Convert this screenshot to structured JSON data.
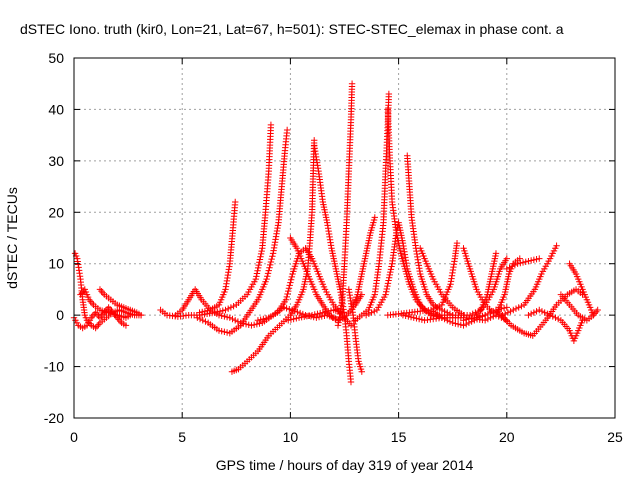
{
  "chart_data": {
    "type": "scatter",
    "title": "dSTEC Iono. truth (kir0, Lon=21, Lat=67, h=501): STEC-STEC_elemax in phase cont. a",
    "xlabel": "GPS time / hours of day 319 of year 2014",
    "ylabel": "dSTEC  / TECUs",
    "xlim": [
      0,
      25
    ],
    "ylim": [
      -20,
      50
    ],
    "xticks": [
      "0",
      "5",
      "10",
      "15",
      "20",
      "25"
    ],
    "yticks": [
      "-20",
      "-10",
      "0",
      "10",
      "20",
      "30",
      "40",
      "50"
    ],
    "grid": true,
    "marker": "plus",
    "marker_color": "#ff0000",
    "series_arcs": [
      {
        "values": [
          [
            0.05,
            12
          ],
          [
            0.15,
            11
          ],
          [
            0.3,
            7
          ],
          [
            0.4,
            3
          ],
          [
            0.5,
            0
          ],
          [
            0.6,
            -1
          ],
          [
            0.8,
            -2
          ],
          [
            1.0,
            -2.5
          ],
          [
            1.2,
            -1.5
          ],
          [
            1.5,
            -0.5
          ],
          [
            1.8,
            0.5
          ],
          [
            2.1,
            1
          ],
          [
            2.4,
            0.5
          ],
          [
            2.8,
            0
          ],
          [
            3.1,
            0
          ]
        ]
      },
      {
        "values": [
          [
            0.0,
            -0.5
          ],
          [
            0.2,
            -2
          ],
          [
            0.4,
            -2.5
          ],
          [
            0.6,
            -2
          ],
          [
            0.8,
            -0.5
          ],
          [
            1.0,
            0.5
          ],
          [
            1.2,
            -0.5
          ],
          [
            1.4,
            0.5
          ],
          [
            1.6,
            1.5
          ],
          [
            1.8,
            0.5
          ],
          [
            2.0,
            -0.5
          ],
          [
            2.2,
            -1.5
          ],
          [
            2.4,
            -2
          ]
        ]
      },
      {
        "values": [
          [
            0.3,
            4
          ],
          [
            0.5,
            5
          ],
          [
            0.7,
            3
          ],
          [
            0.9,
            2
          ],
          [
            1.2,
            1
          ],
          [
            1.6,
            0.5
          ],
          [
            2.0,
            0
          ],
          [
            2.4,
            -0.5
          ],
          [
            2.6,
            0
          ]
        ]
      },
      {
        "values": [
          [
            1.2,
            5
          ],
          [
            1.4,
            4
          ],
          [
            1.7,
            3
          ],
          [
            2.0,
            2
          ],
          [
            2.3,
            1.5
          ],
          [
            2.6,
            1
          ],
          [
            2.9,
            0.5
          ],
          [
            3.1,
            0
          ]
        ]
      },
      {
        "values": [
          [
            4.0,
            1
          ],
          [
            4.3,
            0
          ],
          [
            4.8,
            -0.3
          ],
          [
            5.3,
            0
          ],
          [
            5.8,
            0
          ],
          [
            6.5,
            0.5
          ],
          [
            7.0,
            1
          ],
          [
            7.5,
            2
          ],
          [
            8.0,
            4
          ],
          [
            8.4,
            7
          ],
          [
            8.7,
            13
          ],
          [
            8.85,
            20
          ],
          [
            9.0,
            28
          ],
          [
            9.1,
            37
          ]
        ]
      },
      {
        "values": [
          [
            4.7,
            0
          ],
          [
            5.0,
            1
          ],
          [
            5.3,
            3
          ],
          [
            5.6,
            5
          ],
          [
            5.9,
            3
          ],
          [
            6.3,
            1
          ],
          [
            6.7,
            0
          ],
          [
            7.2,
            -0.5
          ],
          [
            7.7,
            -1.5
          ],
          [
            8.2,
            -2
          ],
          [
            8.7,
            -1.5
          ],
          [
            9.2,
            0
          ],
          [
            9.7,
            1.5
          ],
          [
            10.2,
            0.8
          ],
          [
            10.7,
            0
          ],
          [
            11.2,
            -0.5
          ],
          [
            11.7,
            0
          ],
          [
            12.2,
            -1
          ]
        ]
      },
      {
        "values": [
          [
            5.7,
            -0.5
          ],
          [
            6.2,
            -1.5
          ],
          [
            6.7,
            -3
          ],
          [
            7.2,
            -3.5
          ],
          [
            7.7,
            -2
          ],
          [
            8.1,
            0.5
          ],
          [
            8.5,
            3
          ],
          [
            8.9,
            7
          ],
          [
            9.2,
            12
          ],
          [
            9.45,
            18
          ],
          [
            9.6,
            25
          ],
          [
            9.75,
            32
          ],
          [
            9.85,
            36
          ]
        ]
      },
      {
        "values": [
          [
            5.8,
            0.5
          ],
          [
            6.3,
            1
          ],
          [
            6.7,
            2
          ],
          [
            7.0,
            5
          ],
          [
            7.2,
            10
          ],
          [
            7.35,
            17
          ],
          [
            7.45,
            22
          ]
        ]
      },
      {
        "values": [
          [
            7.3,
            -11
          ],
          [
            7.6,
            -10.5
          ],
          [
            8.0,
            -9
          ],
          [
            8.5,
            -7
          ],
          [
            9.0,
            -4
          ],
          [
            9.5,
            -2
          ],
          [
            10.0,
            0
          ],
          [
            10.3,
            2
          ],
          [
            10.6,
            5
          ],
          [
            10.8,
            9
          ],
          [
            10.9,
            14
          ],
          [
            11.0,
            20
          ],
          [
            11.05,
            27
          ],
          [
            11.1,
            34
          ]
        ]
      },
      {
        "values": [
          [
            8.5,
            -1
          ],
          [
            9.0,
            -0.5
          ],
          [
            9.4,
            0.5
          ],
          [
            9.8,
            3
          ],
          [
            10.1,
            8
          ],
          [
            10.4,
            12
          ],
          [
            10.7,
            13
          ],
          [
            11.0,
            11
          ],
          [
            11.3,
            8
          ],
          [
            11.6,
            5
          ],
          [
            12.0,
            2
          ],
          [
            12.4,
            0
          ],
          [
            12.8,
            -2
          ]
        ]
      },
      {
        "values": [
          [
            11.1,
            33
          ],
          [
            11.3,
            28
          ],
          [
            11.5,
            22
          ],
          [
            11.7,
            18
          ],
          [
            11.9,
            13
          ],
          [
            12.1,
            9
          ],
          [
            12.3,
            5
          ],
          [
            12.5,
            0
          ],
          [
            12.6,
            -4
          ],
          [
            12.7,
            -9
          ],
          [
            12.8,
            -13
          ]
        ]
      },
      {
        "values": [
          [
            10.0,
            15
          ],
          [
            10.3,
            13
          ],
          [
            10.6,
            10
          ],
          [
            10.9,
            7
          ],
          [
            11.2,
            4
          ],
          [
            11.5,
            2
          ],
          [
            11.8,
            0
          ],
          [
            12.2,
            -1
          ],
          [
            12.6,
            0
          ],
          [
            13.0,
            2
          ],
          [
            13.3,
            4
          ]
        ]
      },
      {
        "values": [
          [
            12.2,
            -2
          ],
          [
            12.4,
            3
          ],
          [
            12.5,
            10
          ],
          [
            12.6,
            18
          ],
          [
            12.7,
            28
          ],
          [
            12.8,
            38
          ],
          [
            12.85,
            45
          ]
        ]
      },
      {
        "values": [
          [
            12.7,
            5
          ],
          [
            12.9,
            0
          ],
          [
            13.0,
            -4
          ],
          [
            13.15,
            -9
          ],
          [
            13.3,
            -11
          ]
        ]
      },
      {
        "values": [
          [
            12.9,
            2
          ],
          [
            13.1,
            4
          ],
          [
            13.3,
            8
          ],
          [
            13.5,
            12
          ],
          [
            13.7,
            16
          ],
          [
            13.9,
            19
          ]
        ]
      },
      {
        "values": [
          [
            13.0,
            -1
          ],
          [
            13.3,
            0
          ],
          [
            13.6,
            1
          ],
          [
            13.9,
            4
          ],
          [
            14.1,
            10
          ],
          [
            14.3,
            18
          ],
          [
            14.4,
            28
          ],
          [
            14.5,
            37
          ],
          [
            14.55,
            43
          ]
        ]
      },
      {
        "values": [
          [
            14.5,
            40
          ],
          [
            14.6,
            30
          ],
          [
            14.7,
            22
          ],
          [
            14.9,
            16
          ],
          [
            15.1,
            12
          ],
          [
            15.3,
            9
          ],
          [
            15.5,
            6
          ],
          [
            15.8,
            3
          ],
          [
            16.2,
            1
          ],
          [
            16.6,
            0
          ]
        ]
      },
      {
        "values": [
          [
            13.5,
            0
          ],
          [
            14.0,
            1
          ],
          [
            14.4,
            4
          ],
          [
            14.7,
            10
          ],
          [
            14.9,
            16
          ],
          [
            15.0,
            18
          ],
          [
            15.2,
            14
          ],
          [
            15.4,
            9
          ],
          [
            15.7,
            5
          ],
          [
            16.0,
            2
          ],
          [
            16.5,
            0
          ],
          [
            17.0,
            -0.5
          ]
        ]
      },
      {
        "values": [
          [
            15.4,
            31
          ],
          [
            15.5,
            25
          ],
          [
            15.6,
            19
          ],
          [
            15.8,
            13
          ],
          [
            16.0,
            8
          ],
          [
            16.3,
            4
          ],
          [
            16.6,
            2
          ],
          [
            17.0,
            1
          ],
          [
            17.5,
            0
          ]
        ]
      },
      {
        "values": [
          [
            16.0,
            13
          ],
          [
            16.3,
            10
          ],
          [
            16.6,
            7
          ],
          [
            17.0,
            4
          ],
          [
            17.5,
            1.5
          ],
          [
            18.0,
            0
          ]
        ]
      },
      {
        "values": [
          [
            14.5,
            0
          ],
          [
            15.5,
            0.5
          ],
          [
            16.5,
            1
          ],
          [
            17.0,
            2
          ],
          [
            17.4,
            6
          ],
          [
            17.6,
            11
          ],
          [
            17.7,
            14
          ]
        ]
      },
      {
        "values": [
          [
            16.5,
            0
          ],
          [
            17.5,
            0
          ],
          [
            18.3,
            0
          ],
          [
            18.8,
            1
          ],
          [
            19.1,
            4
          ],
          [
            19.3,
            8
          ],
          [
            19.5,
            12
          ]
        ]
      },
      {
        "values": [
          [
            18.0,
            13
          ],
          [
            18.3,
            9
          ],
          [
            18.6,
            5
          ],
          [
            19.0,
            2
          ],
          [
            19.5,
            0
          ],
          [
            20.0,
            -1
          ]
        ]
      },
      {
        "values": [
          [
            15.2,
            0
          ],
          [
            16.2,
            -1
          ],
          [
            17.0,
            -0.5
          ],
          [
            18.0,
            -0.5
          ],
          [
            19.0,
            -1
          ],
          [
            19.5,
            0
          ],
          [
            19.9,
            4
          ],
          [
            20.1,
            8
          ],
          [
            20.3,
            10
          ],
          [
            20.6,
            11
          ]
        ]
      },
      {
        "values": [
          [
            18.6,
            0
          ],
          [
            19.0,
            2
          ],
          [
            19.4,
            5
          ],
          [
            19.7,
            9
          ],
          [
            20.0,
            11
          ]
        ]
      },
      {
        "values": [
          [
            19.5,
            1
          ],
          [
            20.2,
            -2
          ],
          [
            20.8,
            -3.5
          ],
          [
            21.2,
            -4
          ],
          [
            21.8,
            -1
          ],
          [
            22.3,
            2
          ],
          [
            22.8,
            4
          ],
          [
            23.2,
            5
          ],
          [
            23.5,
            4
          ]
        ]
      },
      {
        "values": [
          [
            19.8,
            0
          ],
          [
            20.3,
            1
          ],
          [
            20.8,
            2
          ],
          [
            21.3,
            5
          ],
          [
            21.6,
            8
          ],
          [
            22.0,
            11
          ],
          [
            22.3,
            13.5
          ]
        ]
      },
      {
        "values": [
          [
            20.0,
            9
          ],
          [
            20.5,
            10
          ],
          [
            21.0,
            10.5
          ],
          [
            21.5,
            11
          ]
        ]
      },
      {
        "values": [
          [
            21.0,
            0
          ],
          [
            21.5,
            1
          ],
          [
            22.0,
            0
          ],
          [
            22.5,
            -1
          ],
          [
            22.9,
            -3
          ],
          [
            23.1,
            -5
          ],
          [
            23.3,
            -3
          ],
          [
            23.5,
            -1
          ]
        ]
      },
      {
        "values": [
          [
            22.9,
            10
          ],
          [
            23.2,
            8
          ],
          [
            23.5,
            5
          ],
          [
            23.7,
            3
          ],
          [
            23.9,
            1
          ],
          [
            24.0,
            0
          ]
        ]
      },
      {
        "values": [
          [
            22.5,
            4
          ],
          [
            22.9,
            2
          ],
          [
            23.3,
            0
          ],
          [
            23.7,
            -1
          ],
          [
            24.0,
            0
          ],
          [
            24.2,
            1
          ]
        ]
      },
      {
        "values": [
          [
            18.0,
            -1
          ],
          [
            18.5,
            -0.5
          ],
          [
            19.0,
            0
          ],
          [
            19.5,
            1
          ],
          [
            20.0,
            1.5
          ]
        ]
      },
      {
        "values": [
          [
            16.5,
            1
          ],
          [
            17.0,
            -0.5
          ],
          [
            17.5,
            -1.5
          ],
          [
            18.0,
            -2
          ],
          [
            18.5,
            -1
          ],
          [
            19.0,
            0
          ]
        ]
      },
      {
        "values": [
          [
            9.9,
            -1
          ],
          [
            10.4,
            -0.5
          ],
          [
            11.0,
            0
          ],
          [
            11.5,
            0.5
          ],
          [
            12.0,
            1
          ],
          [
            12.4,
            0.5
          ]
        ]
      }
    ]
  }
}
